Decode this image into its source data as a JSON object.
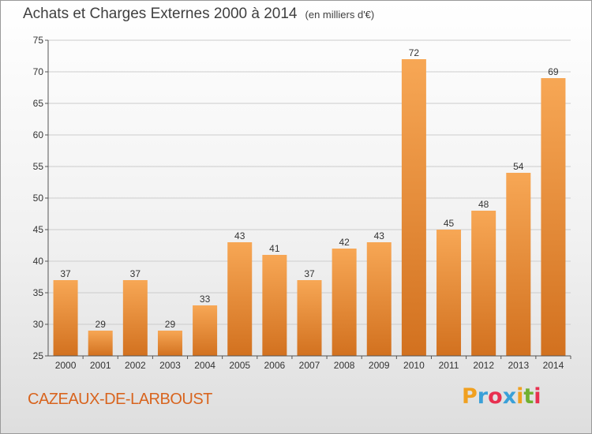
{
  "title": "Achats et Charges Externes 2000 à 2014",
  "subtitle": "(en milliers d'€)",
  "place": "CAZEAUX-DE-LARBOUST",
  "logo": {
    "letters": [
      "P",
      "r",
      "o",
      "x",
      "i",
      "t",
      "i"
    ],
    "colors": [
      "#f0a020",
      "#3aa0d8",
      "#e83050",
      "#3aa0d8",
      "#f0a020",
      "#70b030",
      "#e83050"
    ]
  },
  "colors": {
    "bar_light": "#f7a755",
    "bar_dark": "#d2711f",
    "grid": "#cccccc",
    "axis": "#555555",
    "place": "#d8641e"
  },
  "chart_data": {
    "type": "bar",
    "title": "Achats et Charges Externes 2000 à 2014",
    "subtitle": "(en milliers d'€)",
    "categories": [
      "2000",
      "2001",
      "2002",
      "2003",
      "2004",
      "2005",
      "2006",
      "2007",
      "2008",
      "2009",
      "2010",
      "2011",
      "2012",
      "2013",
      "2014"
    ],
    "values": [
      37,
      29,
      37,
      29,
      33,
      43,
      41,
      37,
      42,
      43,
      72,
      45,
      48,
      54,
      69
    ],
    "ylim": [
      25,
      75
    ],
    "yticks": [
      25,
      30,
      35,
      40,
      45,
      50,
      55,
      60,
      65,
      70,
      75
    ],
    "grid": true,
    "data_labels": true
  }
}
